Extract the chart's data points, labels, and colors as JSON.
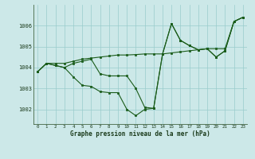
{
  "xlabel": "Graphe pression niveau de la mer (hPa)",
  "bg_color": "#cce8e8",
  "grid_color": "#99cccc",
  "line_color": "#1a5c1a",
  "ylim": [
    1001.3,
    1007.0
  ],
  "yticks": [
    1002,
    1003,
    1004,
    1005,
    1006
  ],
  "xticks": [
    0,
    1,
    2,
    3,
    4,
    5,
    6,
    7,
    8,
    9,
    10,
    11,
    12,
    13,
    14,
    15,
    16,
    17,
    18,
    19,
    20,
    21,
    22,
    23
  ],
  "s1": [
    1003.8,
    1004.2,
    1004.2,
    1004.2,
    1004.3,
    1004.4,
    1004.45,
    1004.5,
    1004.55,
    1004.6,
    1004.6,
    1004.62,
    1004.65,
    1004.65,
    1004.65,
    1004.7,
    1004.75,
    1004.8,
    1004.85,
    1004.9,
    1004.9,
    1004.9,
    1006.2,
    1006.4
  ],
  "s2": [
    1003.8,
    1004.2,
    1004.1,
    1004.0,
    1003.55,
    1003.15,
    1003.1,
    1002.85,
    1002.8,
    1002.8,
    1002.0,
    1001.7,
    1002.0,
    1002.05,
    1004.65,
    1006.1,
    1005.3,
    1005.05,
    1004.85,
    1004.9,
    1004.5,
    1004.8,
    1006.2,
    1006.4
  ],
  "s3": [
    1003.8,
    1004.2,
    1004.1,
    1004.0,
    1004.2,
    1004.3,
    1004.4,
    1003.7,
    1003.6,
    1003.6,
    1003.6,
    1003.0,
    1002.1,
    1002.05,
    1004.65,
    1006.1,
    1005.3,
    1005.05,
    1004.85,
    1004.9,
    1004.5,
    1004.8,
    1006.2,
    1006.4
  ]
}
